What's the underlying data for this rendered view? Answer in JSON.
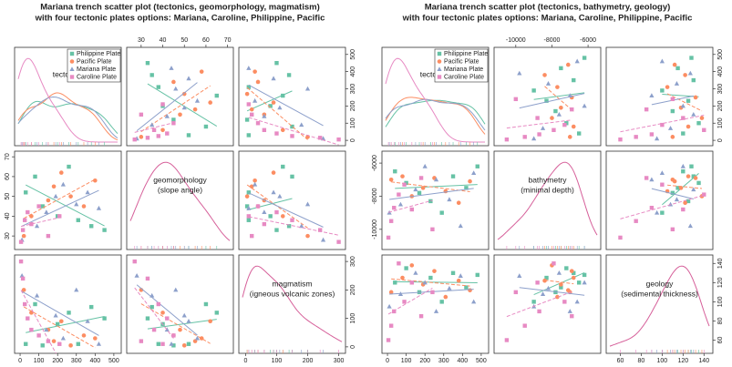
{
  "chart_data": [
    {
      "type": "scatter-matrix",
      "title": [
        "Mariana trench scatter plot (tectonics, geomorphology, magmatism)",
        "with four tectonic plates options: Mariana, Caroline, Philippine, Pacific"
      ],
      "variables": [
        {
          "label": [
            "tectonics"
          ],
          "lim": [
            -10,
            520
          ],
          "ticks": [
            0,
            100,
            200,
            300,
            400,
            500
          ]
        },
        {
          "label": [
            "geomorphology",
            "(slope angle)"
          ],
          "lim": [
            25,
            71
          ],
          "ticks": [
            30,
            40,
            50,
            60,
            70
          ]
        },
        {
          "label": [
            "magmatism",
            "(igneous volcanic zones)"
          ],
          "lim": [
            -10,
            310
          ],
          "ticks": [
            0,
            100,
            200,
            300
          ]
        }
      ],
      "series": [
        {
          "name": "Philippine Plate",
          "color": "#66c2a5",
          "shape": "square",
          "data": [
            [
              30,
              80,
              120,
              200,
              260,
              310,
              380,
              450
            ],
            [
              52,
              60,
              45,
              40,
              65,
              38,
              35,
              33
            ],
            [
              10,
              150,
              5,
              80,
              120,
              10,
              140,
              100
            ]
          ]
        },
        {
          "name": "Pacific Plate",
          "color": "#fc8d62",
          "shape": "circle",
          "data": [
            [
              20,
              60,
              150,
              180,
              220,
              270,
              340,
              400
            ],
            [
              30,
              40,
              48,
              55,
              62,
              50,
              45,
              58
            ],
            [
              200,
              120,
              60,
              20,
              90,
              5,
              40,
              30
            ]
          ]
        },
        {
          "name": "Mariana Plate",
          "color": "#8da0cb",
          "shape": "triangle",
          "data": [
            [
              10,
              90,
              140,
              190,
              230,
              300,
              360,
              420
            ],
            [
              28,
              35,
              42,
              50,
              56,
              46,
              52,
              44
            ],
            [
              250,
              180,
              60,
              110,
              30,
              200,
              90,
              10
            ]
          ]
        },
        {
          "name": "Caroline Plate",
          "color": "#e78ac3",
          "shape": "square",
          "data": [
            [
              5,
              15,
              25,
              40,
              60,
              100,
              150,
              210
            ],
            [
              27,
              33,
              38,
              42,
              36,
              45,
              30,
              40
            ],
            [
              300,
              240,
              150,
              100,
              60,
              40,
              20,
              10
            ]
          ]
        }
      ]
    },
    {
      "type": "scatter-matrix",
      "title": [
        "Mariana trench scatter plot (tectonics, bathymetry, geology)",
        "with four tectonic plates options: Mariana, Caroline, Philippine, Pacific"
      ],
      "variables": [
        {
          "label": [
            "tectonics"
          ],
          "lim": [
            -10,
            520
          ],
          "ticks": [
            0,
            100,
            200,
            300,
            400,
            500
          ]
        },
        {
          "label": [
            "bathymetry",
            "(minimal depth)"
          ],
          "lim": [
            -11000,
            -5500
          ],
          "ticks": [
            -10000,
            -8000,
            -6000
          ]
        },
        {
          "label": [
            "geology",
            "(sedimental thickness)"
          ],
          "lim": [
            50,
            145
          ],
          "ticks": [
            60,
            80,
            100,
            120,
            140
          ]
        }
      ],
      "series": [
        {
          "name": "Philippine Plate",
          "color": "#66c2a5",
          "shape": "square",
          "data": [
            [
              40,
              100,
              170,
              230,
              290,
              350,
              420,
              480
            ],
            [
              -6500,
              -7200,
              -7800,
              -8300,
              -9000,
              -6800,
              -7500,
              -6200
            ],
            [
              120,
              135,
              110,
              125,
              100,
              130,
              115,
              128
            ]
          ]
        },
        {
          "name": "Pacific Plate",
          "color": "#fc8d62",
          "shape": "circle",
          "data": [
            [
              20,
              80,
              130,
              190,
              250,
              310,
              380,
              440
            ],
            [
              -7000,
              -6800,
              -8000,
              -7500,
              -6900,
              -7700,
              -8400,
              -7100
            ],
            [
              110,
              125,
              138,
              118,
              132,
              105,
              122,
              112
            ]
          ]
        },
        {
          "name": "Mariana Plate",
          "color": "#8da0cb",
          "shape": "triangle",
          "data": [
            [
              10,
              70,
              150,
              200,
              260,
              330,
              390,
              460
            ],
            [
              -9000,
              -8500,
              -7600,
              -6200,
              -7000,
              -8200,
              -9800,
              -6600
            ],
            [
              95,
              108,
              130,
              120,
              90,
              114,
              127,
              100
            ]
          ]
        },
        {
          "name": "Caroline Plate",
          "color": "#e78ac3",
          "shape": "square",
          "data": [
            [
              5,
              20,
              35,
              60,
              90,
              130,
              180,
              240
            ],
            [
              -10500,
              -9500,
              -8700,
              -7900,
              -7300,
              -8800,
              -6900,
              -10000
            ],
            [
              60,
              75,
              90,
              140,
              100,
              120,
              85,
              110
            ]
          ]
        }
      ]
    }
  ]
}
